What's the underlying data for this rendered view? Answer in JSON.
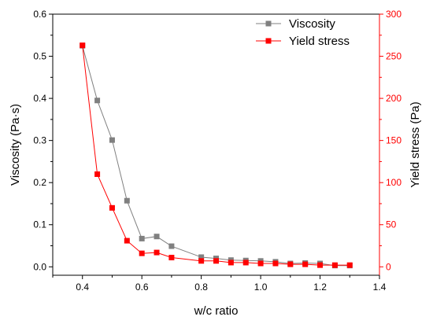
{
  "chart_data": {
    "type": "line",
    "xlabel": "w/c ratio",
    "ylabel": "Viscosity (Pa·s)",
    "y2label": "Yield stress (Pa)",
    "xlim": [
      0.3,
      1.4
    ],
    "ylim": [
      -0.02,
      0.6
    ],
    "y2lim": [
      -10,
      300
    ],
    "xticks": [
      "0.4",
      "0.6",
      "0.8",
      "1.0",
      "1.2",
      "1.4"
    ],
    "yticks": [
      "0.0",
      "0.1",
      "0.2",
      "0.3",
      "0.4",
      "0.5",
      "0.6"
    ],
    "y2ticks": [
      "0",
      "50",
      "100",
      "150",
      "200",
      "250",
      "300"
    ],
    "legend": "top-right",
    "grid": false,
    "x": [
      0.4,
      0.45,
      0.5,
      0.55,
      0.6,
      0.65,
      0.7,
      0.8,
      0.85,
      0.9,
      0.95,
      1.0,
      1.05,
      1.1,
      1.15,
      1.2,
      1.25,
      1.3
    ],
    "series": [
      {
        "name": "Viscosity",
        "axis": "left",
        "color": "#808080",
        "values": [
          0.525,
          0.395,
          0.301,
          0.157,
          0.067,
          0.072,
          0.049,
          0.023,
          0.02,
          0.016,
          0.015,
          0.014,
          0.012,
          0.008,
          0.009,
          0.008,
          0.003,
          0.003
        ]
      },
      {
        "name": "Yield stress",
        "axis": "right",
        "color": "#ff0000",
        "values": [
          263,
          110,
          70,
          31,
          16,
          17,
          11,
          7,
          7,
          5,
          5,
          4,
          4,
          3,
          3,
          2,
          2,
          2
        ]
      }
    ]
  }
}
